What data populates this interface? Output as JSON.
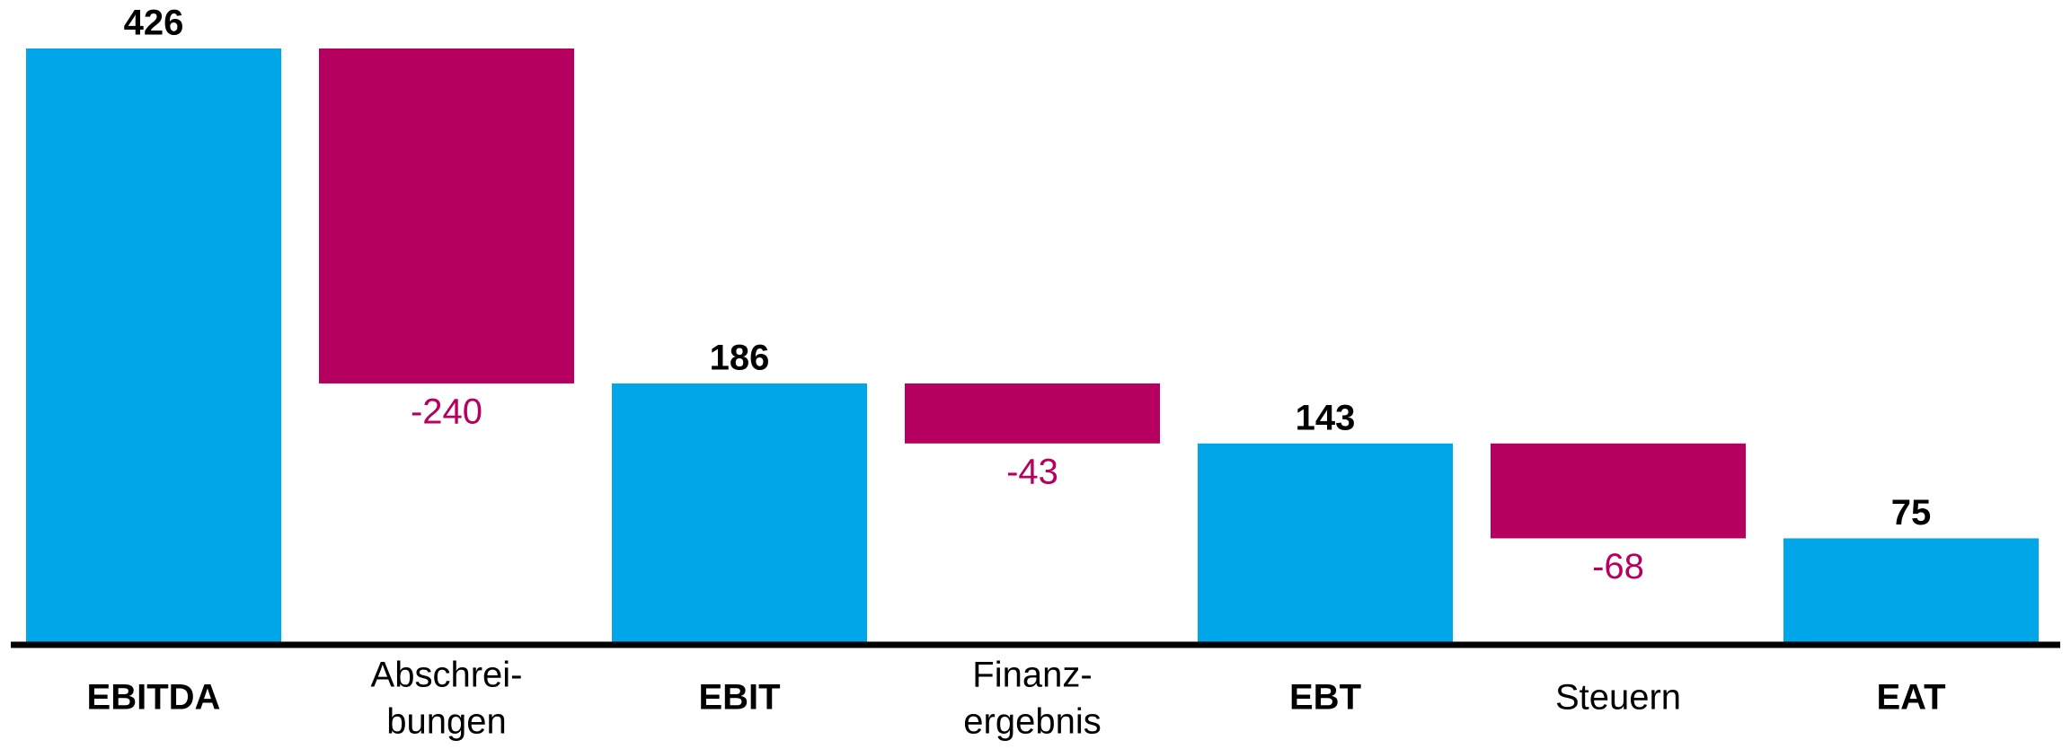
{
  "chart_data": {
    "type": "waterfall",
    "categories": [
      [
        "EBITDA"
      ],
      [
        "Abschrei-",
        "bungen"
      ],
      [
        "EBIT"
      ],
      [
        "Finanz-",
        "ergebnis"
      ],
      [
        "EBT"
      ],
      [
        "Steuern"
      ],
      [
        "EAT"
      ]
    ],
    "values": [
      426,
      -240,
      186,
      -43,
      143,
      -68,
      75
    ],
    "measure": [
      "total",
      "relative",
      "total",
      "relative",
      "total",
      "relative",
      "total"
    ],
    "colors": {
      "total": "#00a6e8",
      "relative": "#b5005f"
    }
  }
}
